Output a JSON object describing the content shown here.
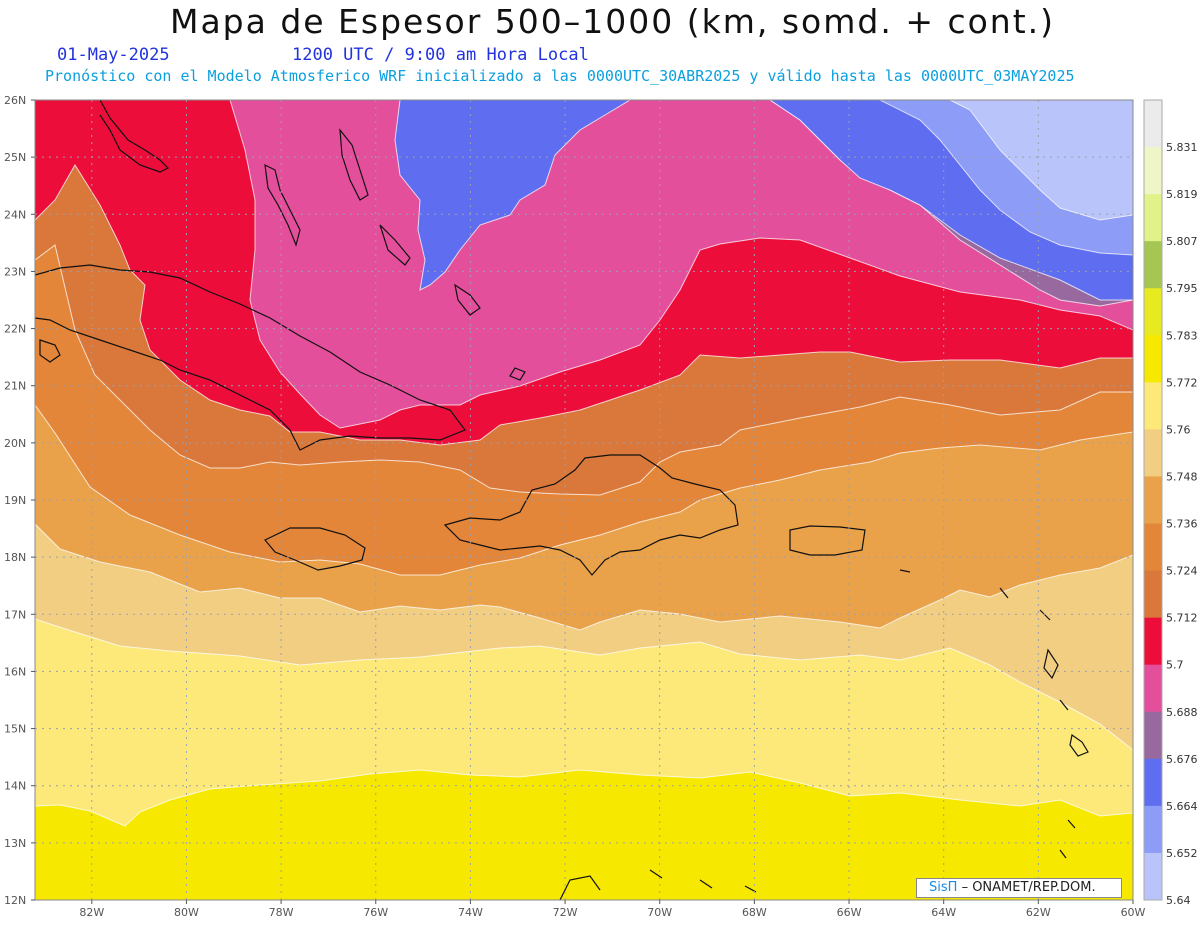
{
  "header": {
    "title": "Mapa de Espesor 500–1000 (km, somd. + cont.)",
    "date": "01-May-2025",
    "time": "1200 UTC / 9:00 am Hora Local",
    "model_info": "Pronóstico con el Modelo Atmosferico WRF inicializado a las 0000UTC_30ABR2025 y válido hasta las  0000UTC_03MAY2025"
  },
  "map": {
    "lat_labels": [
      "26N",
      "25N",
      "24N",
      "23N",
      "22N",
      "21N",
      "20N",
      "19N",
      "18N",
      "17N",
      "16N",
      "15N",
      "14N",
      "13N",
      "12N"
    ],
    "lon_labels": [
      "82W",
      "80W",
      "78W",
      "76W",
      "74W",
      "72W",
      "70W",
      "68W",
      "66W",
      "64W",
      "62W",
      "60W"
    ],
    "lat_range": [
      12,
      26
    ],
    "lon_range": [
      -83.2,
      -60
    ],
    "grid": true
  },
  "colorbar": {
    "labels": [
      "5.831",
      "5.819",
      "5.807",
      "5.795",
      "5.783",
      "5.772",
      "5.76",
      "5.748",
      "5.736",
      "5.724",
      "5.712",
      "5.7",
      "5.688",
      "5.676",
      "5.664",
      "5.652",
      "5.64"
    ],
    "colors": [
      "#ebebeb",
      "#f0f5c8",
      "#e2f28a",
      "#a6c654",
      "#e6ea1e",
      "#f7e800",
      "#fde97a",
      "#f1ce82",
      "#eaa24a",
      "#e3863a",
      "#d9783a",
      "#ec0d3b",
      "#e44f9c",
      "#97699f",
      "#5f6ef0",
      "#8d9cf6",
      "#b9c4fb"
    ],
    "colors_note_bottom_is_lowest": true
  },
  "regions_colors": {
    "c5640": "#b9c4fb",
    "c5652": "#8d9cf6",
    "c5664": "#5f6ef0",
    "c5676": "#97699f",
    "c5688": "#e44f9c",
    "c5700": "#ec0d3b",
    "c5712": "#d9783a",
    "c5724": "#e3863a",
    "c5736": "#eaa24a",
    "c5748": "#f1ce82",
    "c5760": "#fde97a",
    "c5772": "#f7e800"
  },
  "credit": {
    "logo": "SisΠ",
    "text": "– ONAMET/REP.DOM."
  }
}
